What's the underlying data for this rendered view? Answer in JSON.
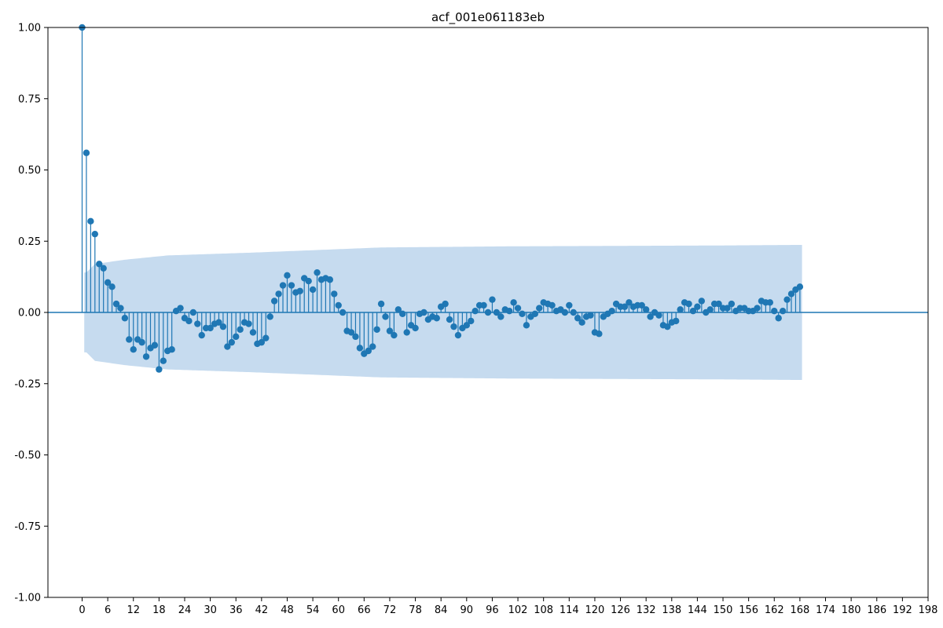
{
  "chart_data": {
    "type": "stem",
    "title": "acf_001e061183eb",
    "xlabel": "",
    "ylabel": "",
    "xlim": [
      -8,
      198
    ],
    "ylim": [
      -1.0,
      1.0
    ],
    "x_ticks": [
      0,
      6,
      12,
      18,
      24,
      30,
      36,
      42,
      48,
      54,
      60,
      66,
      72,
      78,
      84,
      90,
      96,
      102,
      108,
      114,
      120,
      126,
      132,
      138,
      144,
      150,
      156,
      162,
      168,
      174,
      180,
      186,
      192,
      198
    ],
    "y_ticks": [
      -1.0,
      -0.75,
      -0.5,
      -0.25,
      0.0,
      0.25,
      0.5,
      0.75,
      1.0
    ],
    "y_tick_labels": [
      "-1.00",
      "-0.75",
      "-0.50",
      "-0.25",
      "0.00",
      "0.25",
      "0.50",
      "0.75",
      "1.00"
    ],
    "grid": false,
    "lags": [
      0,
      1,
      2,
      3,
      4,
      5,
      6,
      7,
      8,
      9,
      10,
      11,
      12,
      13,
      14,
      15,
      16,
      17,
      18,
      19,
      20,
      21,
      22,
      23,
      24,
      25,
      26,
      27,
      28,
      29,
      30,
      31,
      32,
      33,
      34,
      35,
      36,
      37,
      38,
      39,
      40,
      41,
      42,
      43,
      44,
      45,
      46,
      47,
      48,
      49,
      50,
      51,
      52,
      53,
      54,
      55,
      56,
      57,
      58,
      59,
      60,
      61,
      62,
      63,
      64,
      65,
      66,
      67,
      68,
      69,
      70,
      71,
      72,
      73,
      74,
      75,
      76,
      77,
      78,
      79,
      80,
      81,
      82,
      83,
      84,
      85,
      86,
      87,
      88,
      89,
      90,
      91,
      92,
      93,
      94,
      95,
      96,
      97,
      98,
      99,
      100,
      101,
      102,
      103,
      104,
      105,
      106,
      107,
      108,
      109,
      110,
      111,
      112,
      113,
      114,
      115,
      116,
      117,
      118,
      119,
      120,
      121,
      122,
      123,
      124,
      125,
      126,
      127,
      128,
      129,
      130,
      131,
      132,
      133,
      134,
      135,
      136,
      137,
      138,
      139,
      140,
      141,
      142,
      143,
      144,
      145,
      146,
      147,
      148,
      149,
      150,
      151,
      152,
      153,
      154,
      155,
      156,
      157,
      158,
      159,
      160,
      161,
      162,
      163,
      164,
      165,
      166,
      167,
      168
    ],
    "acf": [
      1.0,
      0.56,
      0.32,
      0.275,
      0.17,
      0.155,
      0.105,
      0.09,
      0.03,
      0.015,
      -0.02,
      -0.095,
      -0.13,
      -0.095,
      -0.105,
      -0.155,
      -0.125,
      -0.115,
      -0.2,
      -0.17,
      -0.135,
      -0.13,
      0.005,
      0.015,
      -0.02,
      -0.03,
      0.0,
      -0.04,
      -0.08,
      -0.055,
      -0.055,
      -0.04,
      -0.035,
      -0.05,
      -0.12,
      -0.105,
      -0.085,
      -0.06,
      -0.035,
      -0.04,
      -0.07,
      -0.11,
      -0.105,
      -0.09,
      -0.015,
      0.04,
      0.065,
      0.095,
      0.13,
      0.095,
      0.07,
      0.075,
      0.12,
      0.11,
      0.08,
      0.14,
      0.115,
      0.12,
      0.115,
      0.065,
      0.025,
      0.0,
      -0.065,
      -0.07,
      -0.085,
      -0.125,
      -0.145,
      -0.135,
      -0.12,
      -0.06,
      0.03,
      -0.015,
      -0.065,
      -0.08,
      0.01,
      -0.005,
      -0.07,
      -0.045,
      -0.055,
      -0.005,
      0.0,
      -0.025,
      -0.015,
      -0.02,
      0.02,
      0.03,
      -0.025,
      -0.05,
      -0.08,
      -0.055,
      -0.045,
      -0.03,
      0.005,
      0.025,
      0.025,
      0.0,
      0.045,
      0.0,
      -0.015,
      0.01,
      0.005,
      0.035,
      0.015,
      -0.005,
      -0.045,
      -0.015,
      -0.005,
      0.015,
      0.035,
      0.03,
      0.025,
      0.005,
      0.01,
      0.0,
      0.025,
      0.0,
      -0.02,
      -0.035,
      -0.015,
      -0.01,
      -0.07,
      -0.075,
      -0.015,
      -0.005,
      0.005,
      0.03,
      0.02,
      0.02,
      0.035,
      0.02,
      0.025,
      0.025,
      0.01,
      -0.015,
      0.0,
      -0.01,
      -0.045,
      -0.05,
      -0.035,
      -0.03,
      0.01,
      0.035,
      0.03,
      0.005,
      0.02,
      0.04,
      0.0,
      0.01,
      0.03,
      0.03,
      0.015,
      0.015,
      0.03,
      0.005,
      0.015,
      0.015,
      0.005,
      0.005,
      0.015,
      0.04,
      0.035,
      0.035,
      0.005,
      -0.02,
      0.005,
      0.045,
      0.065,
      0.08,
      0.09
    ],
    "confint_lags": [
      1,
      3,
      10,
      20,
      40,
      60,
      70,
      100,
      150,
      168
    ],
    "confint_upper": [
      0.14,
      0.17,
      0.185,
      0.2,
      0.21,
      0.222,
      0.228,
      0.232,
      0.235,
      0.237
    ],
    "colors": {
      "marker": "#1f77b4",
      "band": "#c6dbef",
      "axis": "#000000"
    }
  }
}
